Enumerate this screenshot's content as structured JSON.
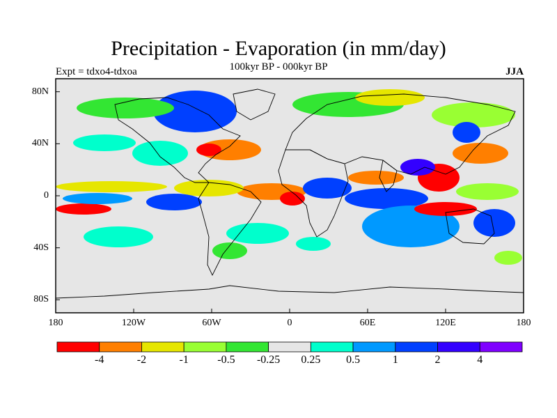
{
  "title": "Precipitation - Evaporation (in mm/day)",
  "subtitle": "100kyr BP - 000kyr BP",
  "left_label": "Expt = tdxo4-tdxoa",
  "right_label": "JJA",
  "map": {
    "lat_ticks": [
      {
        "value": 80,
        "label": "80N"
      },
      {
        "value": 40,
        "label": "40N"
      },
      {
        "value": 0,
        "label": "0"
      },
      {
        "value": -40,
        "label": "40S"
      },
      {
        "value": -80,
        "label": "80S"
      }
    ],
    "lon_ticks": [
      {
        "value": -180,
        "label": "180"
      },
      {
        "value": -120,
        "label": "120W"
      },
      {
        "value": -60,
        "label": "60W"
      },
      {
        "value": 0,
        "label": "0"
      },
      {
        "value": 60,
        "label": "60E"
      },
      {
        "value": 120,
        "label": "120E"
      },
      {
        "value": 180,
        "label": "180"
      }
    ],
    "background_color": "#e6e6e6"
  },
  "colorbar": {
    "colors": [
      "#ff0000",
      "#ff7f00",
      "#e6e600",
      "#99ff33",
      "#33e633",
      "#e6e6e6",
      "#00ffcc",
      "#0099ff",
      "#0040ff",
      "#3300ff",
      "#7f00ff"
    ],
    "labels": [
      "-4",
      "-2",
      "-1",
      "-0.5",
      "-0.25",
      "0.25",
      "0.5",
      "1",
      "2",
      "4"
    ]
  }
}
